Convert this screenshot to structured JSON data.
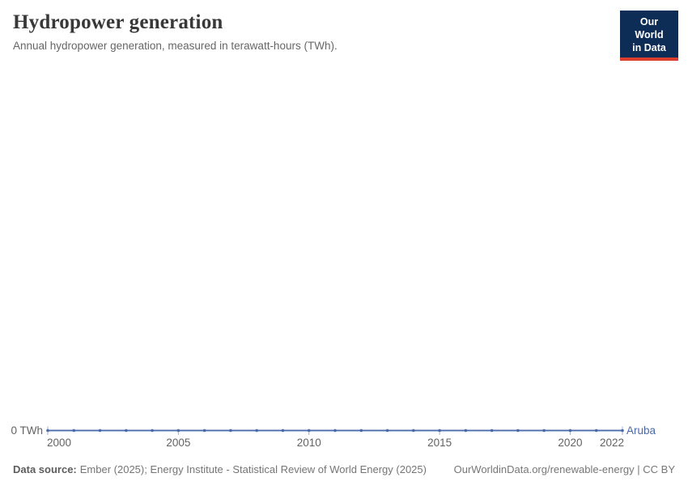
{
  "header": {
    "title": "Hydropower generation",
    "subtitle": "Annual hydropower generation, measured in terawatt-hours (TWh)."
  },
  "logo": {
    "line1": "Our World",
    "line2": "in Data",
    "bg_color": "#0d2d57",
    "accent_color": "#dc3e2e",
    "text_color": "#ffffff"
  },
  "chart_data": {
    "type": "line",
    "title": "Hydropower generation",
    "subtitle": "Annual hydropower generation, measured in terawatt-hours (TWh).",
    "xlabel": "",
    "ylabel": "TWh",
    "x": [
      2000,
      2001,
      2002,
      2003,
      2004,
      2005,
      2006,
      2007,
      2008,
      2009,
      2010,
      2011,
      2012,
      2013,
      2014,
      2015,
      2016,
      2017,
      2018,
      2019,
      2020,
      2021,
      2022
    ],
    "series": [
      {
        "name": "Aruba",
        "color": "#4a69a8",
        "values": [
          0,
          0,
          0,
          0,
          0,
          0,
          0,
          0,
          0,
          0,
          0,
          0,
          0,
          0,
          0,
          0,
          0,
          0,
          0,
          0,
          0,
          0,
          0
        ]
      }
    ],
    "x_ticks": [
      2000,
      2005,
      2010,
      2015,
      2020,
      2022
    ],
    "xlim": [
      2000,
      2022
    ],
    "ylim": [
      0,
      0
    ],
    "y_tick_labels": [
      "0 TWh"
    ],
    "grid": false,
    "legend": "inline-end-label",
    "marker_every_year": true
  },
  "footer": {
    "source_label": "Data source:",
    "source_text": "Ember (2025); Energy Institute - Statistical Review of World Energy (2025)",
    "link_text": "OurWorldinData.org/renewable-energy | CC BY"
  }
}
